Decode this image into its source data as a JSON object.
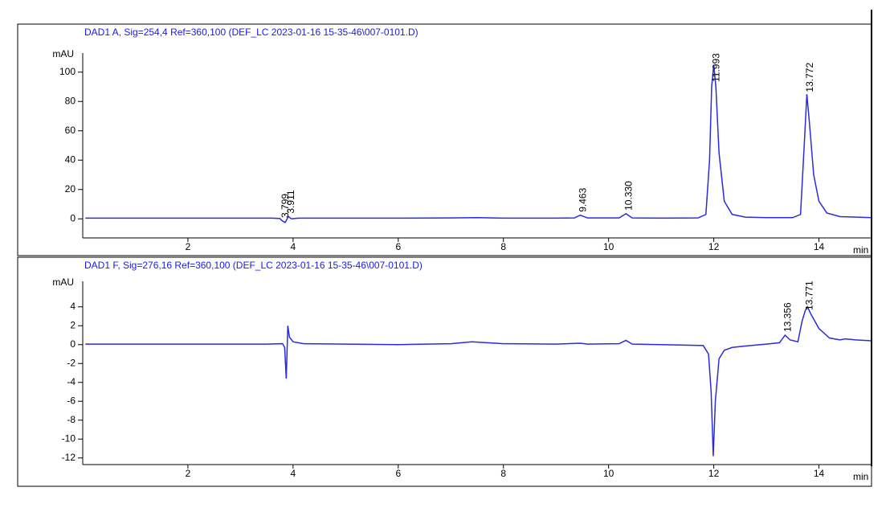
{
  "chart_data": [
    {
      "type": "line",
      "title": "DAD1 A, Sig=254,4 Ref=360,100 (DEF_LC 2023-01-16 15-35-46\\007-0101.D)",
      "ylabel": "mAU",
      "xlabel": "min",
      "xlim": [
        0,
        15
      ],
      "ylim": [
        -13,
        113
      ],
      "xticks": [
        2,
        4,
        6,
        8,
        10,
        12,
        14
      ],
      "yticks": [
        0,
        20,
        40,
        60,
        80,
        100
      ],
      "x": [
        0.05,
        1,
        2,
        3,
        3.6,
        3.75,
        3.8,
        3.85,
        3.91,
        3.97,
        4.1,
        5,
        6,
        7,
        7.5,
        8,
        9,
        9.35,
        9.46,
        9.6,
        10.2,
        10.33,
        10.45,
        11,
        11.7,
        11.85,
        11.92,
        11.96,
        12.0,
        12.04,
        12.1,
        12.2,
        12.35,
        12.6,
        13,
        13.5,
        13.65,
        13.72,
        13.77,
        13.82,
        13.9,
        14.0,
        14.15,
        14.4,
        15
      ],
      "series": [
        {
          "color": "#2a2ae0",
          "values": [
            0.5,
            0.5,
            0.5,
            0.5,
            0.5,
            0.2,
            -1.5,
            -2.5,
            1.5,
            0,
            0.5,
            0.5,
            0.5,
            0.6,
            0.8,
            0.5,
            0.5,
            0.6,
            2.5,
            0.6,
            0.6,
            3.5,
            0.6,
            0.5,
            0.6,
            3,
            40,
            90,
            105,
            90,
            45,
            12,
            3,
            1.2,
            0.8,
            0.8,
            3,
            50,
            85,
            65,
            30,
            12,
            4,
            1.5,
            0.8
          ]
        }
      ],
      "annotations": [
        {
          "x": 3.799,
          "text": "3.799"
        },
        {
          "x": 3.911,
          "text": "3.911"
        },
        {
          "x": 9.463,
          "text": "9.463"
        },
        {
          "x": 10.33,
          "text": "10.330"
        },
        {
          "x": 11.993,
          "text": "11.993"
        },
        {
          "x": 13.772,
          "text": "13.772"
        }
      ]
    },
    {
      "type": "line",
      "title": "DAD1 F, Sig=276,16 Ref=360,100 (DEF_LC 2023-01-16 15-35-46\\007-0101.D)",
      "ylabel": "mAU",
      "xlabel": "min",
      "xlim": [
        0,
        15
      ],
      "ylim": [
        -12.7,
        6.7
      ],
      "xticks": [
        2,
        4,
        6,
        8,
        10,
        12,
        14
      ],
      "yticks": [
        -12,
        -10,
        -8,
        -6,
        -4,
        -2,
        0,
        2,
        4
      ],
      "x": [
        0.05,
        1,
        2,
        3,
        3.5,
        3.8,
        3.84,
        3.87,
        3.9,
        3.93,
        4.0,
        4.2,
        5,
        6,
        7,
        7.4,
        8,
        9,
        9.46,
        9.6,
        10.2,
        10.33,
        10.45,
        11,
        11.8,
        11.9,
        11.95,
        11.99,
        12.03,
        12.1,
        12.2,
        12.35,
        12.6,
        13,
        13.25,
        13.356,
        13.45,
        13.6,
        13.68,
        13.74,
        13.78,
        13.85,
        14,
        14.2,
        14.4,
        14.5,
        14.7,
        15
      ],
      "series": [
        {
          "color": "#2a2ae0",
          "values": [
            0.05,
            0.05,
            0.05,
            0.05,
            0.05,
            0.1,
            -0.3,
            -3.6,
            2.0,
            0.8,
            0.3,
            0.1,
            0.05,
            0.0,
            0.1,
            0.3,
            0.1,
            0.05,
            0.15,
            0.05,
            0.1,
            0.45,
            0.05,
            0,
            -0.1,
            -1,
            -5,
            -11.8,
            -6,
            -1.5,
            -0.6,
            -0.3,
            -0.15,
            0.05,
            0.2,
            1.0,
            0.5,
            0.3,
            2.5,
            3.6,
            4.0,
            3.2,
            1.7,
            0.7,
            0.5,
            0.6,
            0.5,
            0.4
          ]
        }
      ],
      "annotations": [
        {
          "x": 13.356,
          "text": "13.356"
        },
        {
          "x": 13.771,
          "text": "13.771"
        }
      ]
    }
  ]
}
